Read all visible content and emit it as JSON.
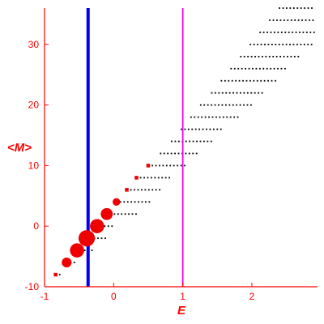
{
  "chart_data": {
    "type": "scatter",
    "xlabel": "E",
    "ylabel": "<M>",
    "xlim": [
      -1,
      2.95
    ],
    "ylim": [
      -10,
      36
    ],
    "xticks": [
      "-1",
      "0",
      "1",
      "2"
    ],
    "yticks": [
      "-10",
      "0",
      "10",
      "20",
      "30"
    ],
    "vertical_lines": [
      {
        "x": -0.37,
        "color": "#0000ee"
      },
      {
        "x": 1.0,
        "color": "#ee00ee"
      }
    ],
    "highlighted_points": {
      "color": "#ee0000",
      "points": [
        {
          "E": -0.84,
          "M": -8,
          "weight": 1
        },
        {
          "E": -0.68,
          "M": -6,
          "weight": 3
        },
        {
          "E": -0.53,
          "M": -4,
          "weight": 5
        },
        {
          "E": -0.39,
          "M": -2,
          "weight": 6
        },
        {
          "E": -0.24,
          "M": 0,
          "weight": 5
        },
        {
          "E": -0.1,
          "M": 2,
          "weight": 4
        },
        {
          "E": 0.04,
          "M": 4,
          "weight": 2
        },
        {
          "E": 0.19,
          "M": 6,
          "weight": 1
        },
        {
          "E": 0.33,
          "M": 8,
          "weight": 1
        },
        {
          "E": 0.5,
          "M": 10,
          "weight": 1
        }
      ]
    },
    "level_rows": {
      "color": "#000000",
      "rows": [
        {
          "M": -8,
          "E_min": -0.84,
          "E_max": -0.73
        },
        {
          "M": -6,
          "E_min": -0.68,
          "E_max": -0.55
        },
        {
          "M": -4,
          "E_min": -0.53,
          "E_max": -0.3
        },
        {
          "M": -2,
          "E_min": -0.39,
          "E_max": -0.12
        },
        {
          "M": 0,
          "E_min": -0.24,
          "E_max": 0.0
        },
        {
          "M": 2,
          "E_min": -0.1,
          "E_max": 0.35
        },
        {
          "M": 4,
          "E_min": 0.04,
          "E_max": 0.56
        },
        {
          "M": 6,
          "E_min": 0.19,
          "E_max": 0.7
        },
        {
          "M": 8,
          "E_min": 0.33,
          "E_max": 0.85
        },
        {
          "M": 10,
          "E_min": 0.5,
          "E_max": 1.05
        },
        {
          "M": 12,
          "E_min": 0.62,
          "E_max": 1.25
        },
        {
          "M": 14,
          "E_min": 0.78,
          "E_max": 1.45
        },
        {
          "M": 16,
          "E_min": 0.92,
          "E_max": 1.6
        },
        {
          "M": 18,
          "E_min": 1.06,
          "E_max": 1.8
        },
        {
          "M": 20,
          "E_min": 1.2,
          "E_max": 2.0
        },
        {
          "M": 22,
          "E_min": 1.36,
          "E_max": 2.15
        },
        {
          "M": 24,
          "E_min": 1.5,
          "E_max": 2.35
        },
        {
          "M": 26,
          "E_min": 1.64,
          "E_max": 2.5
        },
        {
          "M": 28,
          "E_min": 1.78,
          "E_max": 2.7
        },
        {
          "M": 30,
          "E_min": 1.92,
          "E_max": 2.9
        },
        {
          "M": 32,
          "E_min": 2.06,
          "E_max": 2.9
        },
        {
          "M": 34,
          "E_min": 2.2,
          "E_max": 2.9
        },
        {
          "M": 36,
          "E_min": 2.34,
          "E_max": 2.9
        }
      ]
    },
    "grid": false,
    "legend": "none"
  }
}
